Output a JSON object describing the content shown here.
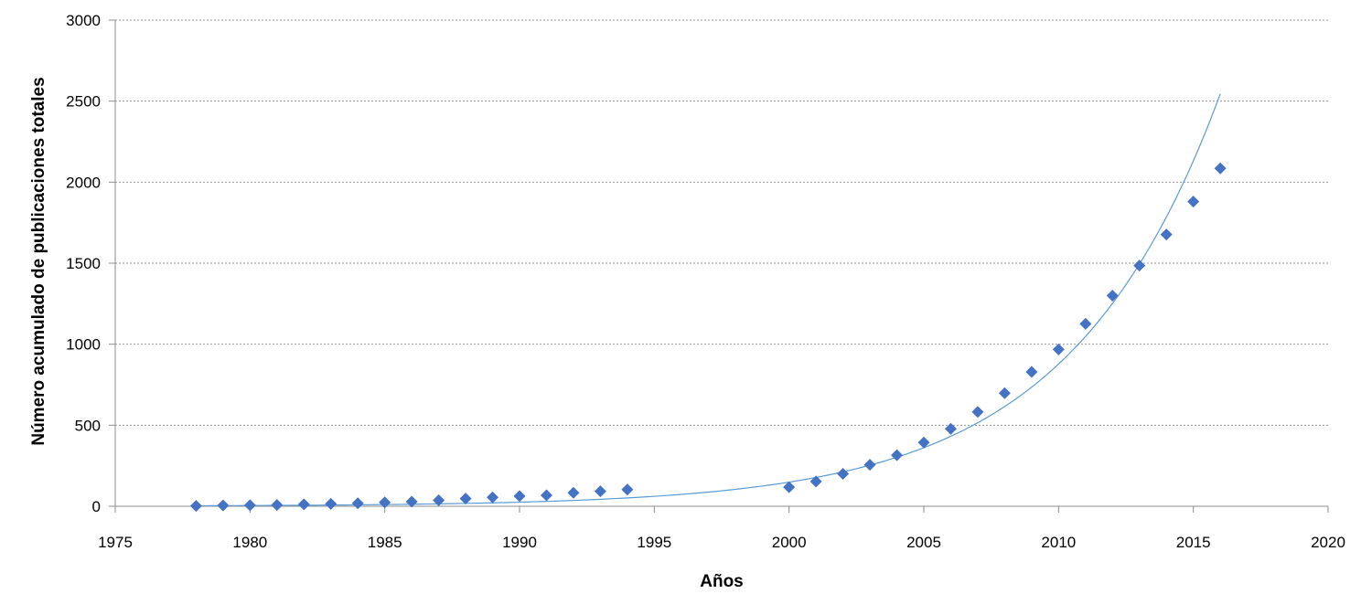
{
  "chart_data": {
    "type": "scatter",
    "xlabel": "Años",
    "ylabel": "Número acumulado de publicaciones totales",
    "xlim": [
      1975,
      2020
    ],
    "ylim": [
      0,
      3000
    ],
    "xticks": [
      1975,
      1980,
      1985,
      1990,
      1995,
      2000,
      2005,
      2010,
      2015,
      2020
    ],
    "yticks": [
      0,
      500,
      1000,
      1500,
      2000,
      2500,
      3000
    ],
    "grid": "horizontal",
    "marker_color": "#4472C4",
    "trendline_color": "#5B9BD5",
    "series": [
      {
        "marker": "diamond",
        "x": [
          1978,
          1979,
          1980,
          1981,
          1982,
          1983,
          1984,
          1985,
          1986,
          1987,
          1988,
          1989,
          1990,
          1991,
          1992,
          1993,
          1994,
          2000,
          2001,
          2002,
          2003,
          2004,
          2005,
          2006,
          2007,
          2008,
          2009,
          2010,
          2011,
          2012,
          2013,
          2014,
          2015,
          2016
        ],
        "y": [
          2,
          5,
          6,
          8,
          12,
          15,
          18,
          24,
          28,
          37,
          47,
          55,
          63,
          68,
          83,
          92,
          103,
          118,
          153,
          200,
          256,
          315,
          393,
          478,
          582,
          698,
          829,
          968,
          1126,
          1300,
          1485,
          1677,
          1880,
          2085
        ]
      }
    ],
    "trendline": {
      "type": "exponential",
      "x_range": [
        1978,
        2016
      ],
      "y_start": 3,
      "y_end": 2545
    }
  }
}
